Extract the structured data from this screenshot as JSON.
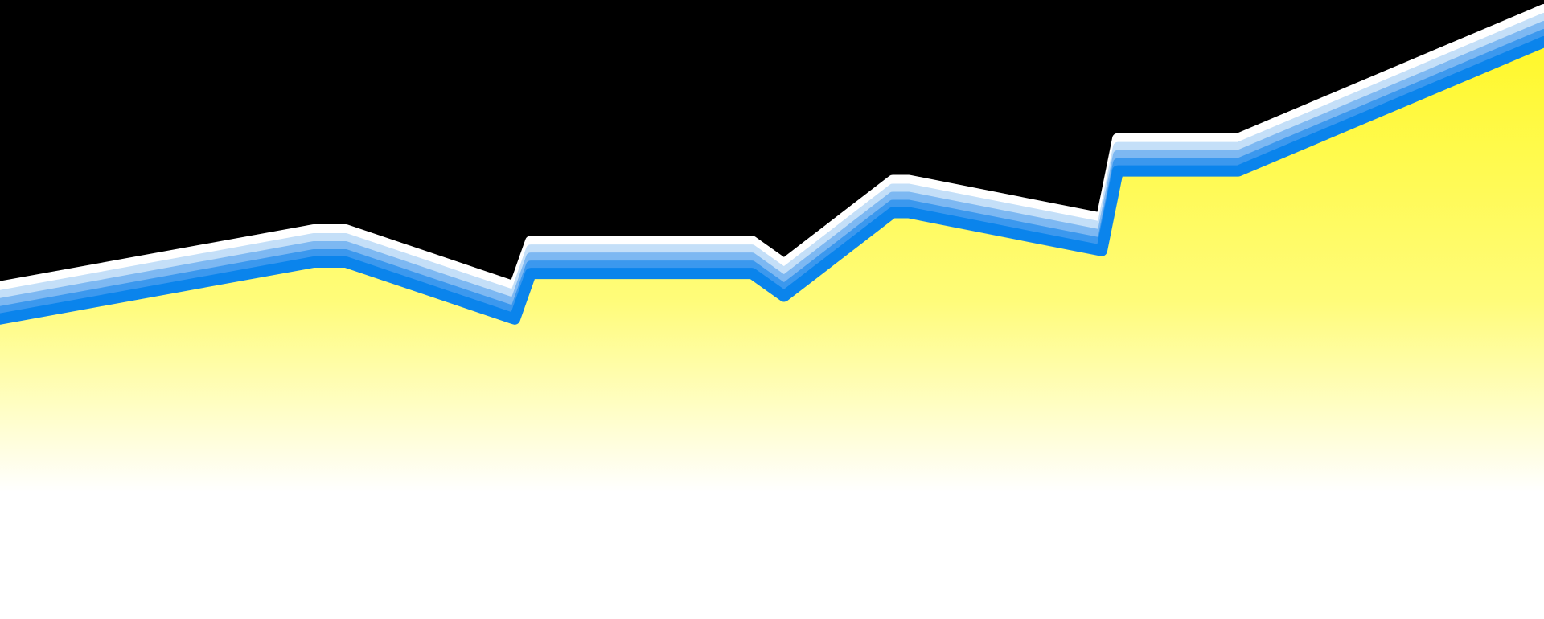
{
  "chart_data": {
    "type": "area",
    "title": "",
    "xlabel": "",
    "ylabel": "",
    "x": [
      0,
      1,
      2,
      3,
      4,
      5,
      6,
      7,
      8,
      9,
      10,
      11,
      12
    ],
    "series": [
      {
        "values": [
          27,
          42,
          42,
          27,
          39,
          39,
          33,
          55,
          55,
          45,
          66,
          66,
          100
        ]
      }
    ],
    "xlim": [
      0,
      12
    ],
    "ylim": [
      -52,
      111
    ],
    "grid": false,
    "legend": "none",
    "colors": {
      "background": "#000000",
      "area_top": "#FFF82A",
      "area_bottom": "#FFFFFF",
      "line_stroke": "#0A84EC",
      "line_glow_1": "#3B98EE",
      "line_glow_2": "#7DB8F2",
      "line_glow_3": "#C4DFF8",
      "line_glow_4": "#FFFFFF"
    }
  }
}
